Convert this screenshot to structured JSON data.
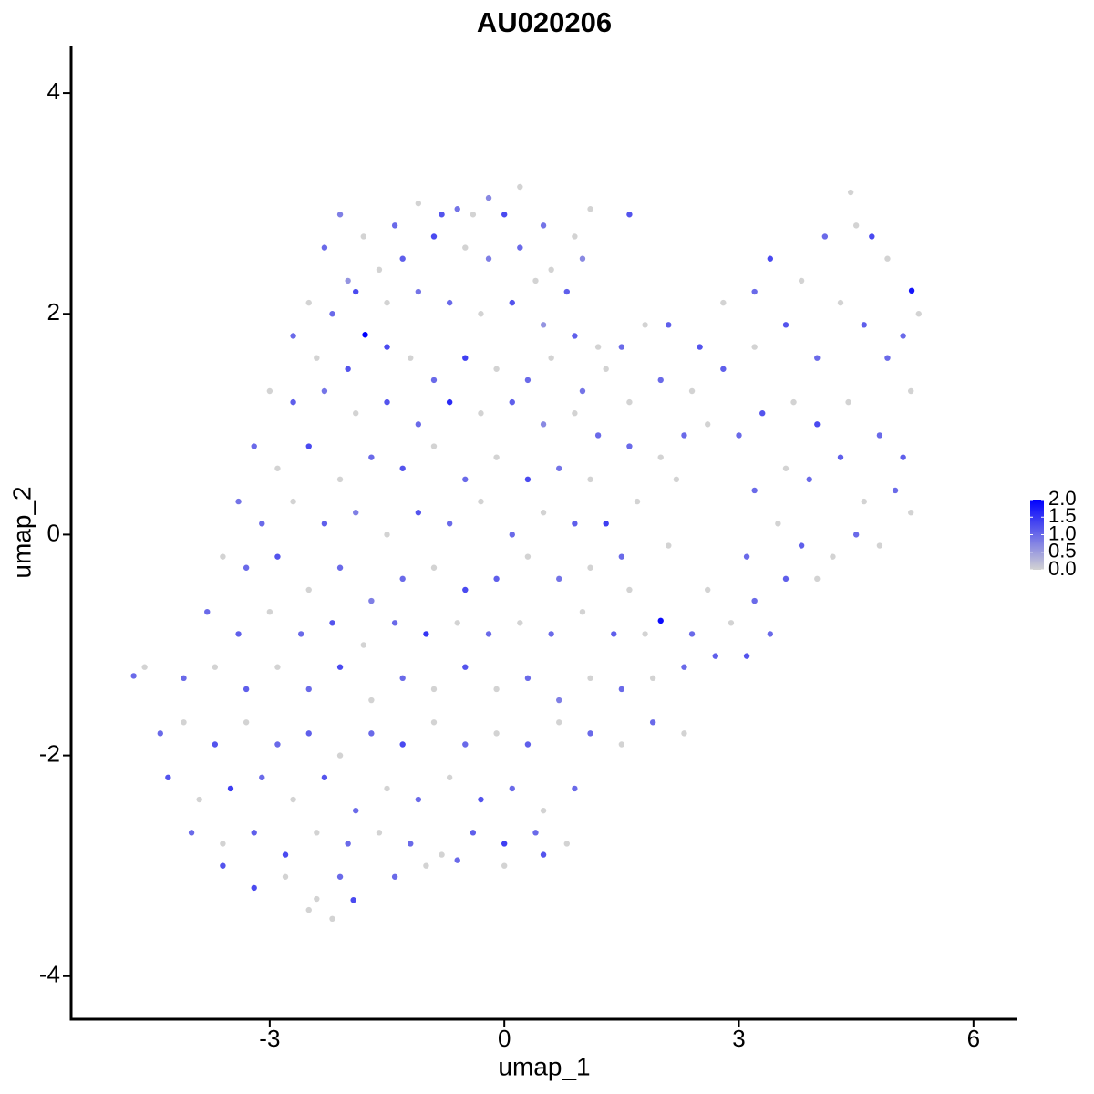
{
  "chart_data": {
    "type": "scatter",
    "title": "AU020206",
    "xlabel": "umap_1",
    "ylabel": "umap_2",
    "xlim": [
      -5.54,
      6.55
    ],
    "ylim": [
      -4.39,
      4.43
    ],
    "xticks": [
      -3,
      0,
      3,
      6
    ],
    "yticks": [
      -4,
      -2,
      0,
      2,
      4
    ],
    "x": [
      -2.1,
      -1.8,
      -1.4,
      -1.1,
      -0.8,
      -0.6,
      -0.4,
      -0.2,
      0.0,
      0.2,
      0.5,
      0.9,
      1.1,
      1.6,
      -2.3,
      -2.0,
      -1.6,
      -1.3,
      -0.9,
      -0.5,
      -0.2,
      0.2,
      0.6,
      1.0,
      0.8,
      0.4,
      -2.5,
      -2.2,
      -1.9,
      -1.5,
      -1.1,
      -0.7,
      -0.3,
      0.1,
      0.5,
      0.9,
      1.2,
      -2.7,
      -2.4,
      -2.0,
      -1.78,
      -1.5,
      -1.2,
      -0.9,
      -0.5,
      -0.1,
      0.3,
      0.6,
      1.0,
      1.3,
      -3.0,
      -2.7,
      -2.3,
      -1.9,
      -1.5,
      -1.1,
      -0.7,
      -0.3,
      0.1,
      0.5,
      0.9,
      1.2,
      -3.2,
      -2.9,
      -2.5,
      -2.1,
      -1.7,
      -1.3,
      -0.9,
      -0.5,
      -0.1,
      0.3,
      0.7,
      1.1,
      -3.4,
      -3.1,
      -2.7,
      -2.3,
      -1.9,
      -1.5,
      -1.1,
      -0.7,
      -0.3,
      0.1,
      0.5,
      0.9,
      1.3,
      -3.6,
      -3.3,
      -2.9,
      -2.5,
      -2.1,
      -1.7,
      -1.3,
      -0.9,
      -0.5,
      -0.1,
      0.3,
      0.7,
      1.1,
      -3.8,
      -3.4,
      -3.0,
      -2.6,
      -2.2,
      -1.8,
      -1.4,
      -1.0,
      -0.6,
      -0.2,
      0.2,
      0.6,
      1.0,
      1.4,
      1.8,
      2.0,
      2.4,
      -4.74,
      -4.6,
      -4.1,
      -3.7,
      -3.3,
      -2.9,
      -2.5,
      -2.1,
      -1.7,
      -1.3,
      -0.9,
      -0.5,
      -0.1,
      0.3,
      0.7,
      1.1,
      1.5,
      1.9,
      2.3,
      2.7,
      3.1,
      -4.4,
      -4.1,
      -3.7,
      -3.3,
      -2.9,
      -2.5,
      -2.1,
      -1.7,
      -1.3,
      -0.9,
      -0.5,
      -0.1,
      0.3,
      0.7,
      1.1,
      1.5,
      1.9,
      2.3,
      -4.3,
      -3.9,
      -3.5,
      -3.1,
      -2.7,
      -2.3,
      -1.9,
      -1.5,
      -1.1,
      -0.7,
      -0.3,
      0.1,
      0.5,
      0.9,
      -4.0,
      -3.6,
      -3.2,
      -2.8,
      -2.4,
      -2.0,
      -1.6,
      -1.2,
      -0.8,
      -0.4,
      0.0,
      0.4,
      0.8,
      -3.6,
      -3.2,
      -2.8,
      -2.4,
      -2.1,
      -1.93,
      -1.4,
      -1.0,
      -0.6,
      0.0,
      0.5,
      -2.2,
      -2.5,
      1.5,
      1.8,
      2.1,
      2.5,
      2.8,
      3.2,
      3.4,
      3.8,
      4.1,
      4.43,
      4.5,
      4.7,
      4.9,
      5.21,
      5.3,
      5.1,
      1.6,
      2.0,
      2.4,
      2.8,
      3.2,
      3.6,
      4.0,
      4.3,
      4.6,
      4.9,
      5.2,
      1.6,
      2.0,
      2.3,
      2.6,
      3.0,
      3.3,
      3.7,
      4.0,
      4.4,
      4.8,
      5.1,
      1.7,
      2.2,
      3.2,
      3.6,
      3.9,
      4.3,
      4.6,
      5.0,
      5.2,
      1.5,
      2.1,
      3.1,
      3.5,
      3.8,
      4.2,
      4.5,
      4.8,
      1.6,
      2.6,
      3.2,
      3.6,
      4.0,
      3.4,
      2.9
    ],
    "y": [
      2.9,
      2.7,
      2.8,
      3.0,
      2.9,
      2.95,
      2.9,
      3.05,
      2.9,
      3.15,
      2.8,
      2.7,
      2.95,
      2.9,
      2.6,
      2.3,
      2.4,
      2.5,
      2.7,
      2.6,
      2.5,
      2.6,
      2.4,
      2.5,
      2.2,
      2.3,
      2.1,
      2.0,
      2.2,
      2.1,
      2.2,
      2.1,
      2.0,
      2.1,
      1.9,
      1.8,
      1.7,
      1.8,
      1.6,
      1.5,
      1.81,
      1.7,
      1.6,
      1.4,
      1.6,
      1.5,
      1.4,
      1.6,
      1.3,
      1.5,
      1.3,
      1.2,
      1.3,
      1.1,
      1.2,
      1.0,
      1.2,
      1.1,
      1.2,
      1.0,
      1.1,
      0.9,
      0.8,
      0.6,
      0.8,
      0.5,
      0.7,
      0.6,
      0.8,
      0.5,
      0.7,
      0.5,
      0.6,
      0.5,
      0.3,
      0.1,
      0.3,
      0.1,
      0.2,
      0.0,
      0.2,
      0.1,
      0.3,
      0.0,
      0.2,
      0.1,
      0.1,
      -0.2,
      -0.3,
      -0.2,
      -0.5,
      -0.3,
      -0.6,
      -0.4,
      -0.3,
      -0.5,
      -0.4,
      -0.2,
      -0.4,
      -0.3,
      -0.7,
      -0.9,
      -0.7,
      -0.9,
      -0.8,
      -1.0,
      -0.8,
      -0.9,
      -0.8,
      -0.9,
      -0.8,
      -0.9,
      -0.7,
      -0.9,
      -0.9,
      -0.78,
      -0.9,
      -1.28,
      -1.2,
      -1.3,
      -1.2,
      -1.4,
      -1.2,
      -1.4,
      -1.2,
      -1.5,
      -1.3,
      -1.4,
      -1.2,
      -1.4,
      -1.3,
      -1.5,
      -1.3,
      -1.4,
      -1.3,
      -1.2,
      -1.1,
      -1.1,
      -1.8,
      -1.7,
      -1.9,
      -1.7,
      -1.9,
      -1.8,
      -2.0,
      -1.8,
      -1.9,
      -1.7,
      -1.9,
      -1.8,
      -1.9,
      -1.7,
      -1.8,
      -1.9,
      -1.7,
      -1.8,
      -2.2,
      -2.4,
      -2.3,
      -2.2,
      -2.4,
      -2.2,
      -2.5,
      -2.3,
      -2.4,
      -2.2,
      -2.4,
      -2.3,
      -2.5,
      -2.3,
      -2.7,
      -2.8,
      -2.7,
      -2.9,
      -2.7,
      -2.8,
      -2.7,
      -2.8,
      -2.9,
      -2.7,
      -2.8,
      -2.7,
      -2.8,
      -3.0,
      -3.2,
      -3.1,
      -3.3,
      -3.1,
      -3.31,
      -3.1,
      -3.0,
      -2.95,
      -3.0,
      -2.9,
      -3.48,
      -3.4,
      1.7,
      1.9,
      1.9,
      1.7,
      2.1,
      2.2,
      2.5,
      2.3,
      2.7,
      3.1,
      2.8,
      2.7,
      2.5,
      2.21,
      2.0,
      1.8,
      1.2,
      1.4,
      1.3,
      1.5,
      1.7,
      1.9,
      1.6,
      2.1,
      1.9,
      1.6,
      1.3,
      0.8,
      0.7,
      0.9,
      1.0,
      0.9,
      1.1,
      1.2,
      1.0,
      1.2,
      0.9,
      0.7,
      0.3,
      0.5,
      0.4,
      0.6,
      0.5,
      0.7,
      0.3,
      0.4,
      0.2,
      -0.2,
      -0.1,
      -0.2,
      0.1,
      -0.1,
      -0.2,
      0.0,
      -0.1,
      -0.5,
      -0.5,
      -0.6,
      -0.4,
      -0.4,
      -0.9,
      -0.8
    ],
    "expression": [
      0.8,
      0,
      1,
      0,
      1.2,
      0.9,
      0,
      0.7,
      1.3,
      0,
      0.9,
      0,
      0,
      1.2,
      1,
      0.6,
      0,
      1.1,
      1.3,
      0,
      0.8,
      1,
      0,
      0.7,
      1.1,
      0,
      0,
      1,
      1.3,
      0,
      0.9,
      1,
      0,
      1.2,
      0.6,
      1.1,
      0,
      1,
      0,
      1.2,
      2.0,
      1.3,
      0,
      1,
      1.4,
      0,
      1,
      0,
      0.9,
      0,
      0,
      1.1,
      0.9,
      0,
      1.2,
      1,
      1.6,
      0,
      1.1,
      0.7,
      0,
      1,
      1,
      0,
      1.3,
      0,
      1,
      1.2,
      0,
      1,
      0,
      1.3,
      0.9,
      0,
      0.9,
      1,
      0,
      1.1,
      0.8,
      0,
      1.2,
      1,
      0,
      1,
      0,
      1.1,
      1.4,
      0,
      1,
      1.2,
      0,
      1,
      0.8,
      1,
      0,
      1.3,
      1.1,
      0,
      0.9,
      0,
      1,
      1.1,
      0,
      1,
      1.2,
      0,
      1,
      1.5,
      0,
      1,
      0,
      1,
      0,
      1.1,
      0,
      1.9,
      1,
      1,
      0,
      1,
      0,
      1.1,
      0,
      1,
      1.3,
      0,
      1,
      0,
      1.2,
      0,
      1,
      0.8,
      0,
      1,
      0,
      1,
      1.1,
      1.2,
      1,
      0,
      1.2,
      0,
      1,
      1.1,
      0,
      1,
      1.3,
      0,
      1,
      0,
      1.1,
      0,
      1,
      0,
      1,
      0,
      1.2,
      0,
      1.4,
      1,
      0,
      1.2,
      1,
      0,
      1,
      0,
      1.2,
      1,
      0,
      1,
      1,
      0,
      1.1,
      1.3,
      0,
      1,
      0,
      1,
      0,
      1.1,
      1.4,
      1,
      0,
      1.2,
      1.3,
      0,
      0,
      1,
      1.3,
      1,
      0,
      1,
      0,
      1.2,
      0,
      0,
      1,
      0,
      1.1,
      1.2,
      0,
      1,
      1.3,
      0,
      1,
      0,
      0,
      1.3,
      0,
      1.8,
      0,
      1,
      0,
      1,
      0,
      1.1,
      0,
      1.2,
      1,
      0,
      1.1,
      1,
      0,
      1,
      0,
      1,
      0,
      1,
      1.2,
      0,
      1.3,
      0,
      1,
      1.1,
      0,
      0,
      1,
      0,
      1,
      1.1,
      0,
      1,
      0,
      1,
      0,
      1,
      0,
      1.1,
      0,
      1,
      0,
      0,
      0,
      1,
      1.1,
      0,
      1,
      0
    ],
    "colorbar": {
      "low_color": "#d3d3d3",
      "high_color": "#0000ff",
      "lim": [
        0,
        2
      ],
      "ticks": [
        {
          "value": 0,
          "label": "0.0"
        },
        {
          "value": 0.5,
          "label": "0.5"
        },
        {
          "value": 1,
          "label": "1.0"
        },
        {
          "value": 1.5,
          "label": "1.5"
        },
        {
          "value": 2,
          "label": "2.0"
        }
      ]
    }
  }
}
